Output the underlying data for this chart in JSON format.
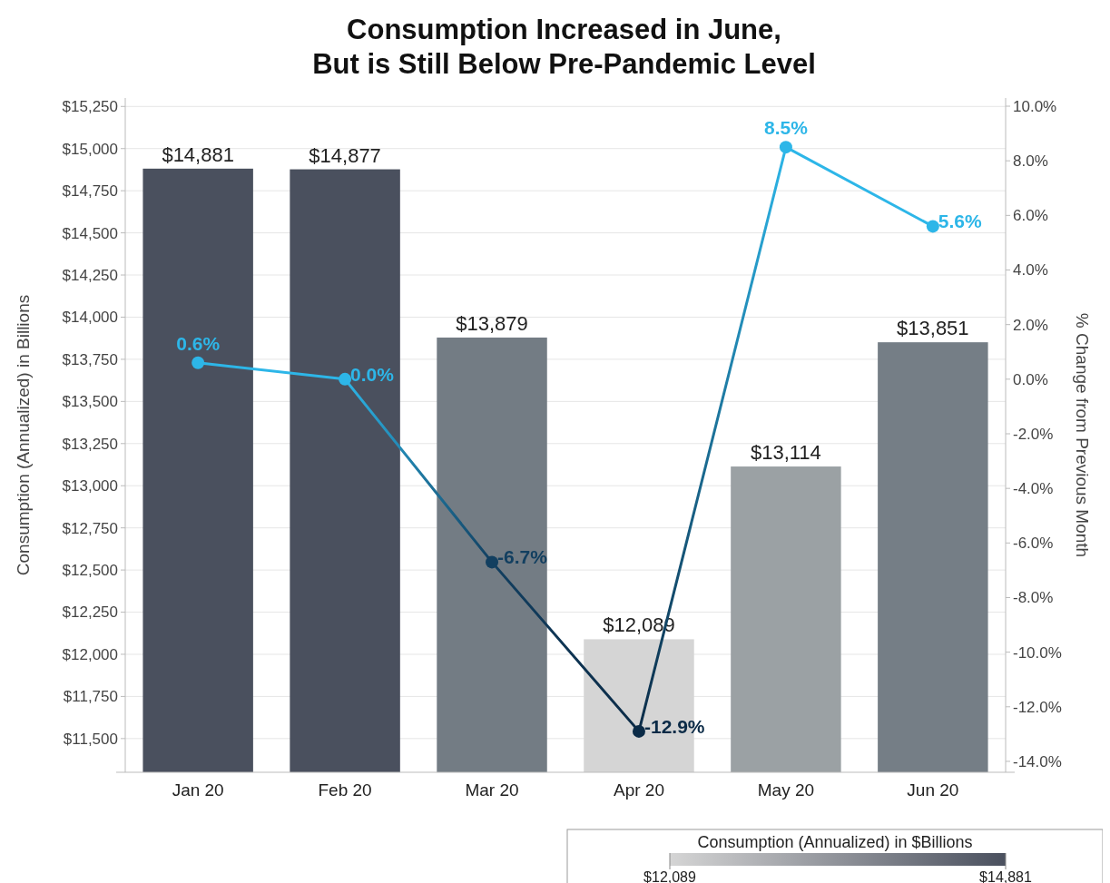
{
  "chart_data": {
    "type": "bar",
    "title": "Consumption Increased in June,\nBut is Still Below Pre-Pandemic Level",
    "ylabel": "Consumption (Annualized) in Billions",
    "y2label": "% Change from Previous Month",
    "clabel": "Consumption (Annualized) in $Billions",
    "clim": [
      12089,
      14881
    ],
    "cticks": [
      {
        "value": 12089,
        "label": "$12,089"
      },
      {
        "value": 14881,
        "label": "$14,881"
      }
    ],
    "categories": [
      "Jan 20",
      "Feb 20",
      "Mar 20",
      "Apr 20",
      "May 20",
      "Jun 20"
    ],
    "ylim": [
      11300,
      15300
    ],
    "yticks": [
      {
        "value": 11500,
        "label": "$11,500"
      },
      {
        "value": 11750,
        "label": "$11,750"
      },
      {
        "value": 12000,
        "label": "$12,000"
      },
      {
        "value": 12250,
        "label": "$12,250"
      },
      {
        "value": 12500,
        "label": "$12,500"
      },
      {
        "value": 12750,
        "label": "$12,750"
      },
      {
        "value": 13000,
        "label": "$13,000"
      },
      {
        "value": 13250,
        "label": "$13,250"
      },
      {
        "value": 13500,
        "label": "$13,500"
      },
      {
        "value": 13750,
        "label": "$13,750"
      },
      {
        "value": 14000,
        "label": "$14,000"
      },
      {
        "value": 14250,
        "label": "$14,250"
      },
      {
        "value": 14500,
        "label": "$14,500"
      },
      {
        "value": 14750,
        "label": "$14,750"
      },
      {
        "value": 15000,
        "label": "$15,000"
      },
      {
        "value": 15250,
        "label": "$15,250"
      }
    ],
    "y2lim": [
      -14.4,
      10.3
    ],
    "y2ticks": [
      {
        "value": -14,
        "label": "-14.0%"
      },
      {
        "value": -12,
        "label": "-12.0%"
      },
      {
        "value": -10,
        "label": "-10.0%"
      },
      {
        "value": -8,
        "label": "-8.0%"
      },
      {
        "value": -6,
        "label": "-6.0%"
      },
      {
        "value": -4,
        "label": "-4.0%"
      },
      {
        "value": -2,
        "label": "-2.0%"
      },
      {
        "value": 0,
        "label": "0.0%"
      },
      {
        "value": 2,
        "label": "2.0%"
      },
      {
        "value": 4,
        "label": "4.0%"
      },
      {
        "value": 6,
        "label": "6.0%"
      },
      {
        "value": 8,
        "label": "8.0%"
      },
      {
        "value": 10,
        "label": "10.0%"
      }
    ],
    "grid": "y",
    "series": [
      {
        "values": [
          14881,
          14877,
          13879,
          12089,
          13114,
          13851
        ],
        "colors": [
          "#4a505e",
          "#4a505e",
          "#737c84",
          "#d5d5d5",
          "#9ba1a4",
          "#757e86"
        ],
        "value_labels": [
          "$14,881",
          "$14,877",
          "$13,879",
          "$12,089",
          "$13,114",
          "$13,851"
        ]
      },
      {
        "type": "line",
        "axis": "y2",
        "marker": "circle",
        "values": [
          0.6,
          0.0,
          -6.7,
          -12.9,
          8.5,
          5.6
        ],
        "colors": [
          "#2db6e8",
          "#2db6e8",
          "#123f60",
          "#0b2b47",
          "#2db6e8",
          "#2db6e8"
        ],
        "value_labels": [
          "0.6%",
          "0.0%",
          "-6.7%",
          "-12.9%",
          "8.5%",
          "5.6%"
        ]
      }
    ]
  }
}
